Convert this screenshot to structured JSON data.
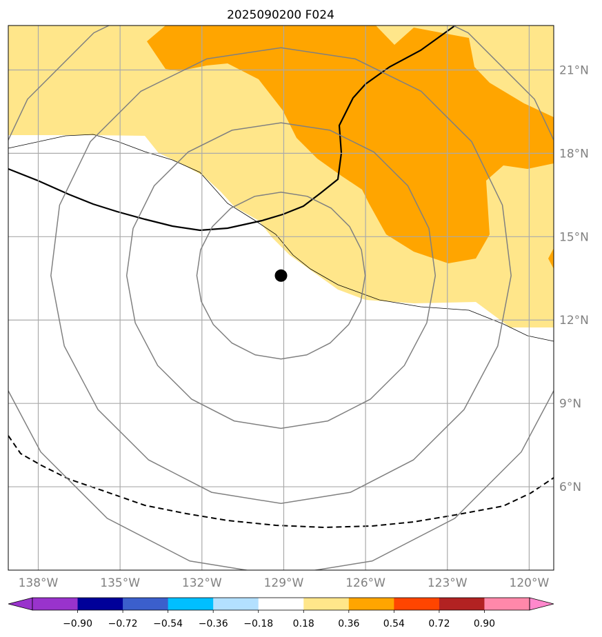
{
  "chart_data": {
    "type": "map-contour",
    "title": "2025090200 F024",
    "lon_labels": [
      "138°W",
      "135°W",
      "132°W",
      "129°W",
      "126°W",
      "123°W",
      "120°W"
    ],
    "lat_labels": [
      "21°N",
      "18°N",
      "15°N",
      "12°N",
      "9°N",
      "6°N"
    ],
    "lon_ticks": [
      -138,
      -135,
      -132,
      -129,
      -126,
      -123,
      -120
    ],
    "lat_ticks": [
      21,
      18,
      15,
      12,
      9,
      6
    ],
    "lon_range": [
      -139.1,
      -119.1
    ],
    "lat_range": [
      3.0,
      22.6
    ],
    "center": {
      "lon": -129.1,
      "lat": 13.6
    },
    "range_rings_deg": [
      3,
      5.5,
      8.2,
      10.8
    ],
    "colorbar": {
      "ticks": [
        "−0.90",
        "−0.72",
        "−0.54",
        "−0.36",
        "−0.18",
        "0.18",
        "0.36",
        "0.54",
        "0.72",
        "0.90"
      ],
      "levels": [
        -0.9,
        -0.72,
        -0.54,
        -0.36,
        -0.18,
        0.18,
        0.36,
        0.54,
        0.72,
        0.9
      ],
      "colors": [
        "#9933cc",
        "#000099",
        "#3b5fcc",
        "#00bfff",
        "#b3e0ff",
        "#ffffff",
        "#ffe68a",
        "#ffa500",
        "#ff4500",
        "#b22222",
        "#ff88aa",
        "#ff88cc"
      ]
    },
    "fill_colors": {
      "light": "#ffe68a",
      "dark": "#ffa500"
    }
  }
}
